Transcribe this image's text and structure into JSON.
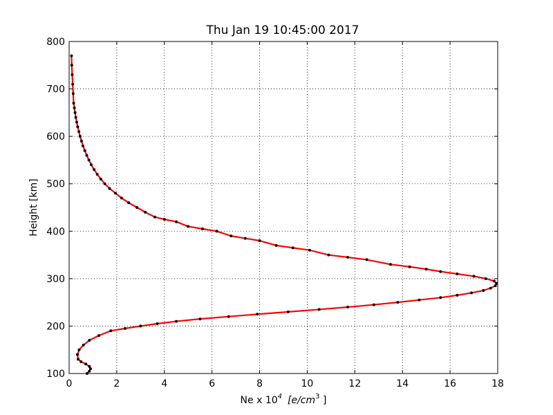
{
  "chart_data": {
    "type": "line",
    "title": "Thu Jan 19 10:45:00 2017",
    "xlabel": "Ne x 10",
    "xlabel_exponent": "4",
    "xlabel_units": "[e/cm",
    "xlabel_units_exponent": "3",
    "xlabel_units_close": " ]",
    "ylabel": "Height [km]",
    "xlim": [
      0,
      18
    ],
    "ylim": [
      100,
      800
    ],
    "x_ticks": [
      "0",
      "2",
      "4",
      "6",
      "8",
      "10",
      "12",
      "14",
      "16",
      "18"
    ],
    "y_ticks": [
      "100",
      "200",
      "300",
      "400",
      "500",
      "600",
      "700",
      "800"
    ],
    "grid": true,
    "line_color": "#ff0000",
    "marker_color": "#000000",
    "series": [
      {
        "x": [
          0.75,
          0.85,
          0.9,
          0.85,
          0.7,
          0.5,
          0.38,
          0.35,
          0.42,
          0.6,
          0.85,
          1.25,
          1.75,
          2.35,
          3.0,
          3.7,
          4.5,
          5.5,
          6.7,
          7.9,
          9.2,
          10.5,
          11.7,
          12.8,
          13.8,
          14.7,
          15.6,
          16.3,
          16.9,
          17.4,
          17.7,
          17.9,
          17.95,
          17.85,
          17.5,
          17.0,
          16.3,
          15.6,
          15.0,
          14.3,
          13.5,
          12.5,
          11.7,
          10.9,
          10.1,
          9.4,
          8.7,
          8.0,
          7.4,
          6.8,
          6.2,
          5.6,
          5.0,
          4.5,
          4.0,
          3.6,
          3.2,
          2.85,
          2.5,
          2.2,
          1.95,
          1.7,
          1.5,
          1.33,
          1.18,
          1.05,
          0.93,
          0.83,
          0.74,
          0.66,
          0.58,
          0.52,
          0.46,
          0.41,
          0.36,
          0.32,
          0.28,
          0.25,
          0.22,
          0.19,
          0.17,
          0.15,
          0.13,
          0.11,
          0.1
        ],
        "y": [
          100,
          105,
          110,
          115,
          120,
          125,
          130,
          140,
          150,
          160,
          170,
          180,
          190,
          195,
          200,
          205,
          210,
          215,
          220,
          225,
          230,
          235,
          240,
          245,
          250,
          255,
          260,
          265,
          270,
          275,
          280,
          285,
          290,
          295,
          300,
          305,
          310,
          315,
          320,
          325,
          330,
          340,
          345,
          350,
          360,
          365,
          370,
          380,
          385,
          390,
          400,
          405,
          410,
          420,
          425,
          430,
          440,
          450,
          460,
          470,
          480,
          490,
          500,
          510,
          520,
          530,
          540,
          550,
          560,
          570,
          580,
          590,
          600,
          610,
          620,
          630,
          640,
          650,
          660,
          670,
          690,
          710,
          730,
          750,
          770
        ]
      }
    ]
  }
}
